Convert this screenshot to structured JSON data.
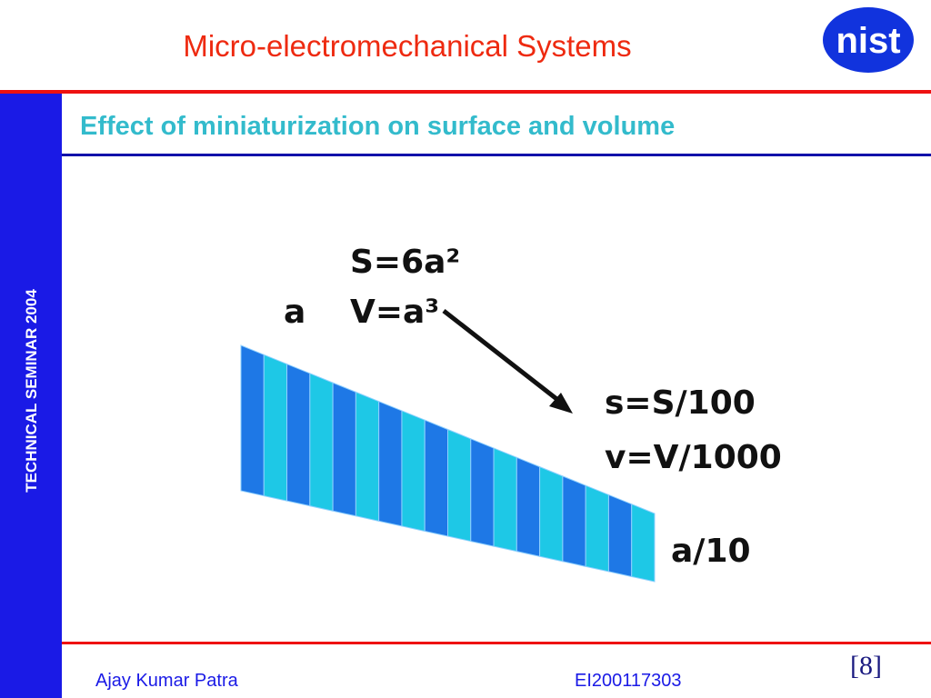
{
  "header": {
    "title": "Micro-electromechanical Systems",
    "logo": "nist"
  },
  "sidebar": {
    "text": "TECHNICAL SEMINAR 2004"
  },
  "slide": {
    "heading": "Effect of miniaturization on surface and volume"
  },
  "figure": {
    "labels": {
      "big_surface": "S=6a²",
      "big_volume": "V=a³",
      "big_side": "a",
      "small_surface": "s=S/100",
      "small_volume": "v=V/1000",
      "small_side": "a/10"
    }
  },
  "footer": {
    "author": "Ajay Kumar Patra",
    "id": "EI200117303",
    "page": "[8]"
  }
}
